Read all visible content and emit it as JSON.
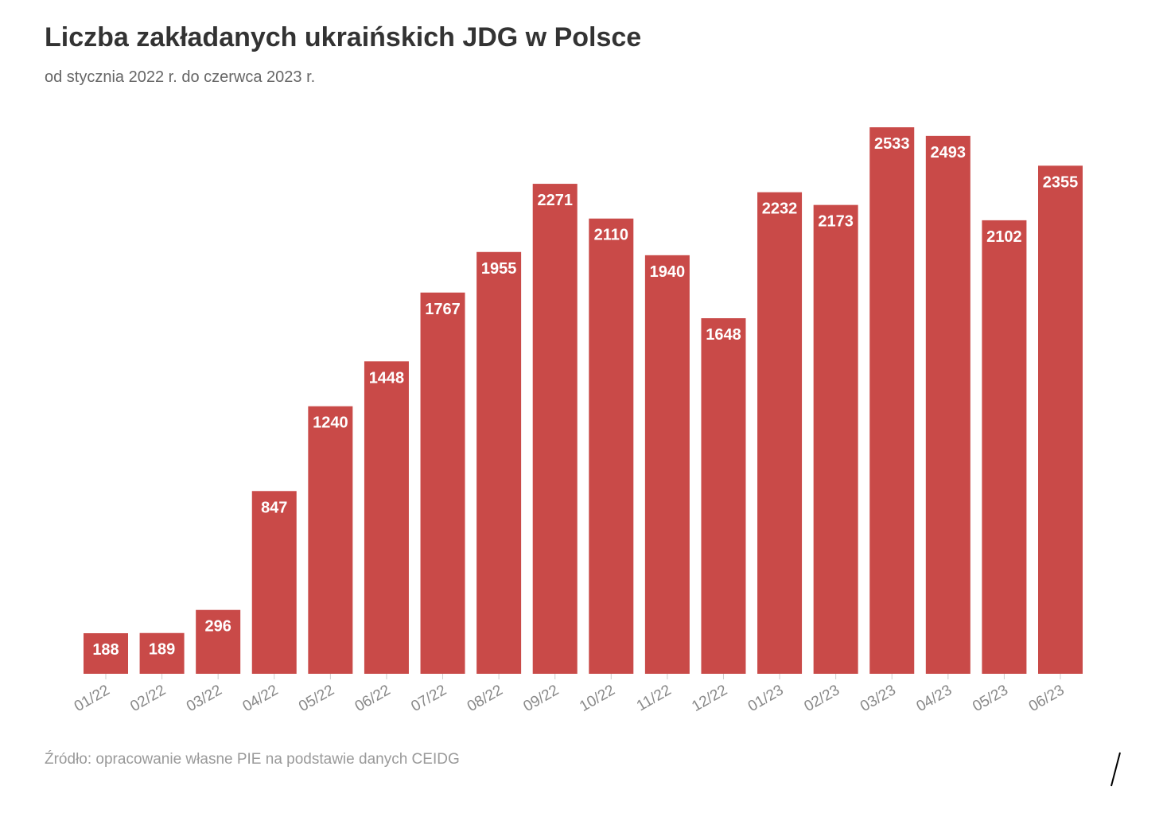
{
  "title": "Liczba zakładanych ukraińskich JDG w Polsce",
  "subtitle": "od stycznia 2022 r. do czerwca 2023 r.",
  "source": "Źródło: opracowanie własne PIE na podstawie danych CEIDG",
  "colors": {
    "bar": "#c94a48",
    "label": "#ffffff",
    "axis_text": "#888888",
    "title": "#333333"
  },
  "chart_data": {
    "type": "bar",
    "title": "Liczba zakładanych ukraińskich JDG w Polsce",
    "subtitle": "od stycznia 2022 r. do czerwca 2023 r.",
    "xlabel": "",
    "ylabel": "",
    "categories": [
      "01/22",
      "02/22",
      "03/22",
      "04/22",
      "05/22",
      "06/22",
      "07/22",
      "08/22",
      "09/22",
      "10/22",
      "11/22",
      "12/22",
      "01/23",
      "02/23",
      "03/23",
      "04/23",
      "05/23",
      "06/23"
    ],
    "values": [
      188,
      189,
      296,
      847,
      1240,
      1448,
      1767,
      1955,
      2271,
      2110,
      1940,
      1648,
      2232,
      2173,
      2533,
      2493,
      2102,
      2355
    ],
    "ylim": [
      0,
      2533
    ],
    "grid": false,
    "legend": "none",
    "data_labels": "inside-top"
  }
}
